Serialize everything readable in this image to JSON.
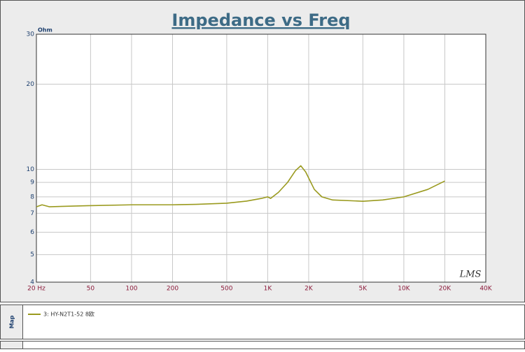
{
  "chart_data": {
    "type": "line",
    "title": "Impedance vs Freq",
    "ylabel": "Ohm",
    "watermark": "LMS",
    "legend_heading": "Map",
    "log_x": true,
    "log_y": true,
    "grid": true,
    "xlim": [
      20,
      40000
    ],
    "ylim": [
      4,
      30
    ],
    "xticks": [
      {
        "value": 20,
        "label": "20  Hz"
      },
      50,
      100,
      200,
      500,
      {
        "value": 1000,
        "label": "1K"
      },
      {
        "value": 2000,
        "label": "2K"
      },
      {
        "value": 5000,
        "label": "5K"
      },
      {
        "value": 10000,
        "label": "10K"
      },
      {
        "value": 20000,
        "label": "20K"
      },
      {
        "value": 40000,
        "label": "40K"
      }
    ],
    "yticks": [
      4,
      5,
      6,
      7,
      8,
      9,
      10,
      20,
      30
    ],
    "x": [
      20,
      22,
      25,
      30,
      50,
      100,
      200,
      300,
      500,
      700,
      900,
      1000,
      1050,
      1200,
      1400,
      1600,
      1750,
      1900,
      2200,
      2500,
      3000,
      5000,
      7000,
      10000,
      15000,
      20000
    ],
    "series": [
      {
        "name": "3: HY-N2T1-52 8欧",
        "color": "#9a9a1e",
        "values": [
          7.38,
          7.5,
          7.38,
          7.4,
          7.45,
          7.5,
          7.5,
          7.53,
          7.6,
          7.73,
          7.9,
          8.0,
          7.9,
          8.3,
          9.0,
          9.9,
          10.3,
          9.8,
          8.5,
          8.0,
          7.8,
          7.72,
          7.8,
          8.0,
          8.5,
          9.1
        ]
      }
    ]
  }
}
